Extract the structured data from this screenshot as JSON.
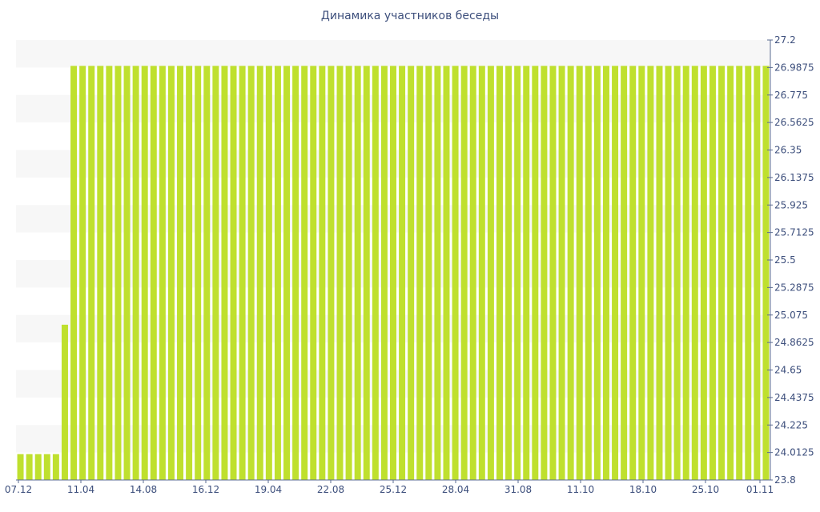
{
  "chart_data": {
    "type": "bar",
    "title": "Динамика участников беседы",
    "xlabel": "",
    "ylabel": "",
    "ylim": [
      23.8,
      27.2
    ],
    "y_ticks": [
      "27.2",
      "26.9875",
      "26.775",
      "26.5625",
      "26.35",
      "26.1375",
      "25.925",
      "25.7125",
      "25.5",
      "25.2875",
      "25.075",
      "24.8625",
      "24.65",
      "24.4375",
      "24.225",
      "24.0125",
      "23.8"
    ],
    "x_tick_labels": [
      "07.12",
      "11.04",
      "14.08",
      "16.12",
      "19.04",
      "22.08",
      "25.12",
      "28.04",
      "31.08",
      "11.10",
      "18.10",
      "25.10",
      "01.11"
    ],
    "bar_count": 85,
    "values": [
      24,
      24,
      24,
      24,
      24,
      25,
      27,
      27,
      27,
      27,
      27,
      27,
      27,
      27,
      27,
      27,
      27,
      27,
      27,
      27,
      27,
      27,
      27,
      27,
      27,
      27,
      27,
      27,
      27,
      27,
      27,
      27,
      27,
      27,
      27,
      27,
      27,
      27,
      27,
      27,
      27,
      27,
      27,
      27,
      27,
      27,
      27,
      27,
      27,
      27,
      27,
      27,
      27,
      27,
      27,
      27,
      27,
      27,
      27,
      27,
      27,
      27,
      27,
      27,
      27,
      27,
      27,
      27,
      27,
      27,
      27,
      27,
      27,
      27,
      27,
      27,
      27,
      27,
      27,
      27,
      27,
      27,
      27,
      27,
      27
    ],
    "bar_color": "#bfe02e",
    "band_color": "#f7f7f7",
    "axis_color": "#5a6b91",
    "grid": true,
    "y_axis_position": "right"
  }
}
